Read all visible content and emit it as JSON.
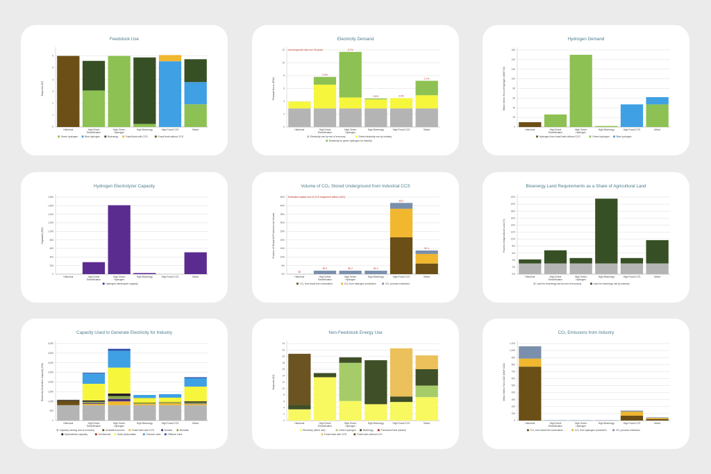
{
  "chart_data": [
    {
      "type": "bar",
      "stacked": true,
      "title": "Feedstock Use",
      "ylabel": "Exajoules (EJ)",
      "ylim": [
        0,
        6.5
      ],
      "yticks": [
        "0",
        "1",
        "2",
        "3",
        "4",
        "5",
        "6"
      ],
      "ytick_values": [
        0,
        1,
        2,
        3,
        4,
        5,
        6
      ],
      "categories": [
        "Historical",
        "High Direct Electrification",
        "High Green Hydrogen",
        "High Bioenergy",
        "High Fossil CCS",
        "Mixed"
      ],
      "series": [
        {
          "name": "Fossil fuels without CCS",
          "color": "#6b4f17",
          "values": [
            6.0,
            0,
            0,
            0,
            0,
            0
          ]
        },
        {
          "name": "Green hydrogen",
          "color": "#8dc153",
          "values": [
            0,
            3.08,
            6.0,
            0.26,
            0,
            1.92
          ]
        },
        {
          "name": "Blue hydrogen",
          "color": "#3fa0e4",
          "values": [
            0,
            0,
            0,
            0,
            5.55,
            1.87
          ]
        },
        {
          "name": "Bioenergy",
          "color": "#374f24",
          "values": [
            0,
            2.5,
            0,
            5.61,
            0,
            1.93
          ]
        },
        {
          "name": "Fossil fuels with CCS",
          "color": "#f0b72f",
          "values": [
            0,
            0,
            0,
            0,
            0.52,
            0
          ]
        }
      ],
      "legend_order": [
        1,
        2,
        3,
        4,
        0
      ]
    },
    {
      "type": "bar",
      "stacked": true,
      "title": "Electricity Demand",
      "ylabel": "Petawatt Hours (PWh)",
      "ylim": [
        0,
        12
      ],
      "yticks": [
        "0",
        "2",
        "4",
        "6",
        "8",
        "10",
        "12"
      ],
      "ytick_values": [
        0,
        2,
        4,
        6,
        8,
        10,
        12
      ],
      "categories": [
        "Historical",
        "High Direct Electrification",
        "High Green Hydrogen",
        "High Bioenergy",
        "High Fossil CCS",
        "Mixed"
      ],
      "series": [
        {
          "name": "Electricity use by rest of economy",
          "color": "#b4b4b4",
          "values": [
            2.9,
            2.9,
            2.9,
            2.9,
            2.9,
            2.9
          ]
        },
        {
          "name": "Direct electricity use by industry",
          "color": "#f6f63c",
          "values": [
            1.06,
            3.7,
            1.7,
            1.4,
            1.6,
            2.05
          ]
        },
        {
          "name": "Electricity for green hydrogen for industry",
          "color": "#8dc153",
          "values": [
            0,
            1.2,
            7.1,
            0.15,
            0,
            2.25
          ]
        }
      ],
      "note": "Annual growth rate over 30 years",
      "bar_labels": [
        "",
        "2.9%",
        "3.7%",
        "0.8%",
        "0.9%",
        "2.1%"
      ]
    },
    {
      "type": "bar",
      "stacked": true,
      "title": "Hydrogen Demand",
      "ylabel": "Million Metric Tons of Hydrogen (MMT H2)",
      "ylim": [
        0,
        160
      ],
      "yticks": [
        "0",
        "20",
        "40",
        "60",
        "80",
        "100",
        "120",
        "140",
        "160"
      ],
      "ytick_values": [
        0,
        20,
        40,
        60,
        80,
        100,
        120,
        140,
        160
      ],
      "categories": [
        "Historical",
        "High Direct Electrification",
        "High Green Hydrogen",
        "High Bioenergy",
        "High Fossil CCS",
        "Mixed"
      ],
      "series": [
        {
          "name": "Hydrogen from fossil fuels without CCS",
          "color": "#6b4f17",
          "values": [
            10,
            0,
            0,
            0,
            0,
            0
          ]
        },
        {
          "name": "Green hydrogen",
          "color": "#8dc153",
          "values": [
            0,
            26,
            150,
            2,
            0,
            47
          ]
        },
        {
          "name": "Blue hydrogen",
          "color": "#3fa0e4",
          "values": [
            0,
            0,
            0,
            0,
            47,
            15
          ]
        }
      ]
    },
    {
      "type": "bar",
      "stacked": true,
      "title": "Hydrogen Electrolyzer Capacity",
      "ylabel": "Gigawatts (GW)",
      "ylim": [
        0,
        1800
      ],
      "yticks": [
        "0",
        "200",
        "400",
        "600",
        "800",
        "1,000",
        "1,200",
        "1,400",
        "1,600",
        "1,800"
      ],
      "ytick_values": [
        0,
        200,
        400,
        600,
        800,
        1000,
        1200,
        1400,
        1600,
        1800
      ],
      "categories": [
        "Historical",
        "High Direct Electrification",
        "High Green Hydrogen",
        "High Bioenergy",
        "High Fossil CCS",
        "Mixed"
      ],
      "series": [
        {
          "name": "Hydrogen electrolyzer capacity",
          "color": "#5b2c8f",
          "values": [
            0,
            280,
            1610,
            25,
            0,
            510
          ]
        }
      ]
    },
    {
      "type": "bar",
      "stacked": true,
      "title": "Volume of CO₂ Stored Underground from Industrial CCS",
      "ylabel": "Fraction of Global Oil Production by Volume",
      "ylim": [
        0,
        45
      ],
      "yticks": [
        "0%",
        "5%",
        "10%",
        "15%",
        "20%",
        "25%",
        "30%",
        "35%",
        "40%",
        "45%"
      ],
      "ytick_values": [
        0,
        5,
        10,
        15,
        20,
        25,
        30,
        35,
        40,
        45
      ],
      "categories": [
        "Historical",
        "High Direct Electrification",
        "High Green Hydrogen",
        "High Bioenergy",
        "High Fossil CCS",
        "Mixed"
      ],
      "series": [
        {
          "name": "CO₂ from fossil fuel combustion",
          "color": "#6b4f17",
          "values": [
            0,
            0,
            0,
            0,
            21.5,
            6.2
          ]
        },
        {
          "name": "CO₂ from hydrogen production",
          "color": "#f0b72f",
          "values": [
            0,
            0,
            0,
            0,
            16.7,
            5.6
          ]
        },
        {
          "name": "CO₂ process emissions",
          "color": "#7a8fab",
          "values": [
            0,
            2,
            2,
            2,
            3.4,
            2.0
          ]
        }
      ],
      "note": "Estimated capital cost of CCS equipment (trillion USD)",
      "bar_labels": [
        "$0",
        "$0.2",
        "$0.2",
        "$0.2",
        "$3.2",
        "$1.1"
      ]
    },
    {
      "type": "bar",
      "stacked": true,
      "title": "Bioenergy Land Requirements as a Share of Agricultural Land",
      "ylabel": "Fraction of Agricultural Land (%)",
      "ylim": [
        0,
        22
      ],
      "yticks": [
        "0%",
        "2%",
        "4%",
        "6%",
        "8%",
        "10%",
        "12%",
        "14%",
        "16%",
        "18%",
        "20%",
        "22%"
      ],
      "ytick_values": [
        0,
        2,
        4,
        6,
        8,
        10,
        12,
        14,
        16,
        18,
        20,
        22
      ],
      "categories": [
        "Historical",
        "High Direct Electrification",
        "High Green Hydrogen",
        "High Bioenergy",
        "High Fossil CCS",
        "Mixed"
      ],
      "series": [
        {
          "name": "Land for bioenergy use by rest of economy",
          "color": "#b4b4b4",
          "values": [
            3.06,
            3.06,
            3.06,
            3.06,
            3.06,
            3.06
          ]
        },
        {
          "name": "Land for bioenergy use by industry",
          "color": "#374f24",
          "values": [
            1.14,
            3.74,
            1.54,
            18.5,
            1.54,
            6.64
          ]
        }
      ]
    },
    {
      "type": "bar",
      "stacked": true,
      "title": "Capacity Used to Generate Electricity for Industry",
      "ylabel": "Electricity Generation Capacity (GW)",
      "ylim": [
        0,
        4000
      ],
      "yticks": [
        "0",
        "500",
        "1,000",
        "1,500",
        "2,000",
        "2,500",
        "3,000",
        "3,500",
        "4,000"
      ],
      "ytick_values": [
        0,
        500,
        1000,
        1500,
        2000,
        2500,
        3000,
        3500,
        4000
      ],
      "categories": [
        "Historical",
        "High Direct Electrification",
        "High Green Hydrogen",
        "High Bioenergy",
        "High Fossil CCS",
        "Mixed"
      ],
      "series": [
        {
          "name": "Capacity serving rest of economy",
          "color": "#b4b4b4",
          "values": [
            800,
            800,
            800,
            800,
            800,
            800
          ]
        },
        {
          "name": "Unabated sources",
          "color": "#6b4f17",
          "values": [
            230,
            0,
            0,
            0,
            0,
            0
          ]
        },
        {
          "name": "Fossil fuels with CCS",
          "color": "#f0b72f",
          "values": [
            0,
            70,
            200,
            70,
            100,
            60
          ]
        },
        {
          "name": "Nuclear",
          "color": "#4b2a7a",
          "values": [
            0,
            40,
            125,
            0,
            0,
            20
          ]
        },
        {
          "name": "Biomass",
          "color": "#8aa84b",
          "values": [
            0,
            70,
            150,
            30,
            30,
            60
          ]
        },
        {
          "name": "Hydroelectric capacity",
          "color": "#1a1a1a",
          "values": [
            40,
            60,
            125,
            20,
            20,
            50
          ]
        },
        {
          "name": "Geothermal",
          "color": "#b03020",
          "values": [
            0,
            10,
            10,
            0,
            0,
            10
          ]
        },
        {
          "name": "Solar photovoltaic",
          "color": "#f6f63c",
          "values": [
            0,
            860,
            1340,
            250,
            240,
            763
          ]
        },
        {
          "name": "Onshore wind",
          "color": "#3fa0e4",
          "values": [
            0,
            530,
            875,
            160,
            180,
            437
          ]
        },
        {
          "name": "Offshore wind",
          "color": "#2b4fa8",
          "values": [
            0,
            40,
            100,
            0,
            0,
            50
          ]
        }
      ]
    },
    {
      "type": "bar",
      "stacked": true,
      "title": "Non-Feedstock Energy Use",
      "ylabel": "Exajoules (EJ)",
      "ylim": [
        0,
        24
      ],
      "yticks": [
        "0",
        "2",
        "4",
        "6",
        "8",
        "10",
        "12",
        "14",
        "16",
        "18",
        "20",
        "22",
        "24"
      ],
      "ytick_values": [
        0,
        2,
        4,
        6,
        8,
        10,
        12,
        14,
        16,
        18,
        20,
        22,
        24
      ],
      "categories": [
        "Historical",
        "High Direct Electrification",
        "High Green Hydrogen",
        "High Bioenergy",
        "High Fossil CCS",
        "Mixed"
      ],
      "series": [
        {
          "name": "Electricity (direct use)",
          "color": "#f8f860",
          "values": [
            3.5,
            13.5,
            6.1,
            5.1,
            5.8,
            7.3
          ]
        },
        {
          "name": "Green hydrogen",
          "color": "#a6cc6a",
          "values": [
            0,
            0,
            11.9,
            0,
            0,
            3.6
          ]
        },
        {
          "name": "Bioenergy",
          "color": "#3f4f27",
          "values": [
            1.35,
            1.3,
            1.7,
            13.7,
            1.7,
            5.1
          ]
        },
        {
          "name": "Purchased heat (steam)",
          "color": "#b03020",
          "values": [
            0,
            0,
            0,
            0,
            0,
            0
          ]
        },
        {
          "name": "Fossil fuels with CCS",
          "color": "#ecc05a",
          "values": [
            0,
            0,
            0,
            0,
            15.0,
            4.3
          ]
        },
        {
          "name": "Fossil fuels without CCS",
          "color": "#6b5421",
          "values": [
            15.95,
            0,
            0,
            0,
            0,
            0
          ]
        }
      ]
    },
    {
      "type": "bar",
      "stacked": true,
      "title": "CO₂ Emissions from Industry",
      "ylabel": "Million Metric Tons CO2 (MMT CO2)",
      "ylim": [
        0,
        1100
      ],
      "yticks": [
        "0",
        "100",
        "200",
        "300",
        "400",
        "500",
        "600",
        "700",
        "800",
        "900",
        "1,000",
        "1,100"
      ],
      "ytick_values": [
        0,
        100,
        200,
        300,
        400,
        500,
        600,
        700,
        800,
        900,
        1000,
        1100
      ],
      "categories": [
        "Historical",
        "High Direct Electrification",
        "High Green Hydrogen",
        "High Bioenergy",
        "High Fossil CCS",
        "Mixed"
      ],
      "series": [
        {
          "name": "CO₂ from fossil fuel combustion",
          "color": "#6b4f17",
          "values": [
            770,
            0,
            0,
            0,
            70,
            20
          ]
        },
        {
          "name": "CO₂ from hydrogen production",
          "color": "#f0b72f",
          "values": [
            115,
            0,
            0,
            0,
            58,
            15
          ]
        },
        {
          "name": "CO₂ process emissions",
          "color": "#7a8fab",
          "values": [
            175,
            5,
            5,
            5,
            14,
            10
          ]
        }
      ]
    }
  ]
}
